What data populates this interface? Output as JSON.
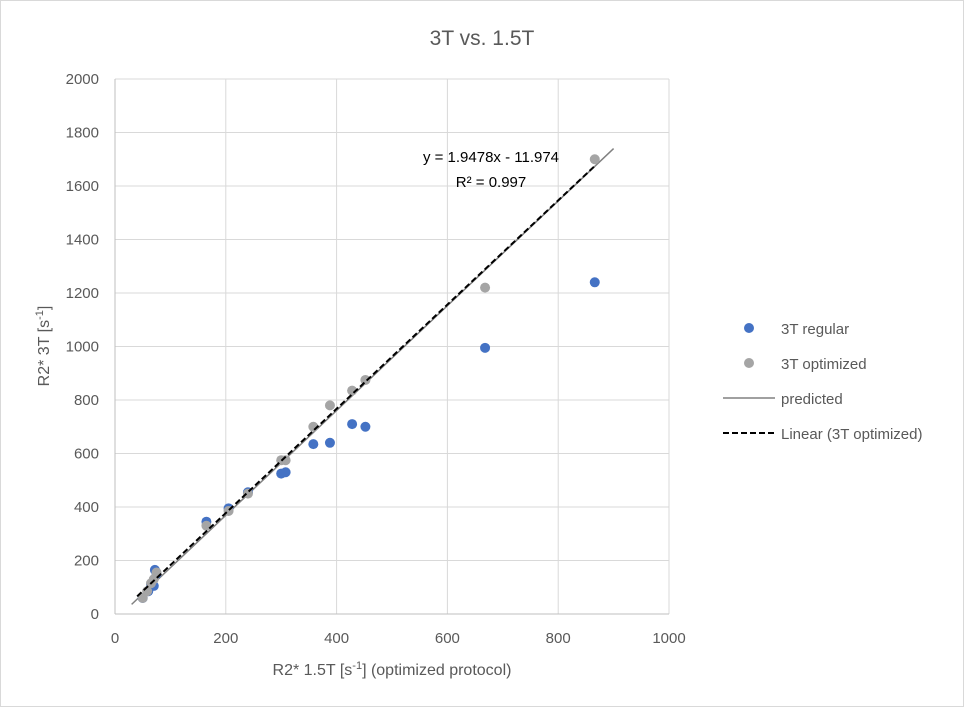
{
  "chart_data": {
    "type": "scatter",
    "title": "3T vs. 1.5T",
    "xlabel": {
      "main": "R2* 1.5T [s",
      "sup": "-1",
      "rest": "] (optimized protocol)"
    },
    "ylabel": {
      "main": "R2* 3T [s",
      "sup": "-1",
      "rest": "]"
    },
    "xlim": [
      0,
      1000
    ],
    "ylim": [
      0,
      2000
    ],
    "xticks": [
      0,
      200,
      400,
      600,
      800,
      1000
    ],
    "yticks": [
      0,
      200,
      400,
      600,
      800,
      1000,
      1200,
      1400,
      1600,
      1800,
      2000
    ],
    "xtick_labels": [
      "0",
      "200",
      "400",
      "600",
      "800",
      "1000"
    ],
    "ytick_labels": [
      "0",
      "200",
      "400",
      "600",
      "800",
      "1000",
      "1200",
      "1400",
      "1600",
      "1800",
      "2000"
    ],
    "grid": true,
    "legend_position": "right",
    "series": [
      {
        "name": "3T regular",
        "kind": "points",
        "color": "#4472c4",
        "x": [
          50,
          60,
          65,
          70,
          72,
          75,
          165,
          205,
          240,
          300,
          308,
          358,
          388,
          428,
          452,
          668,
          866
        ],
        "y": [
          60,
          85,
          110,
          105,
          165,
          150,
          345,
          395,
          455,
          525,
          530,
          635,
          640,
          710,
          700,
          995,
          1240
        ]
      },
      {
        "name": "3T optimized",
        "kind": "points",
        "color": "#a5a5a5",
        "x": [
          50,
          58,
          65,
          70,
          75,
          165,
          205,
          240,
          300,
          308,
          358,
          388,
          428,
          452,
          668,
          866
        ],
        "y": [
          60,
          85,
          115,
          130,
          155,
          330,
          385,
          450,
          575,
          575,
          700,
          780,
          835,
          875,
          1220,
          1700
        ]
      },
      {
        "name": "predicted",
        "kind": "line",
        "color": "#808080",
        "x": [
          30,
          900
        ],
        "y": [
          36,
          1740
        ]
      },
      {
        "name": "Linear (3T optimized)",
        "kind": "dashed",
        "color": "#000000",
        "x": [
          40,
          866
        ],
        "y": [
          65.94,
          1674.82
        ]
      }
    ],
    "annotation": {
      "equation": "y = 1.9478x - 11.974",
      "r2_label": "R² = 0.997"
    }
  }
}
